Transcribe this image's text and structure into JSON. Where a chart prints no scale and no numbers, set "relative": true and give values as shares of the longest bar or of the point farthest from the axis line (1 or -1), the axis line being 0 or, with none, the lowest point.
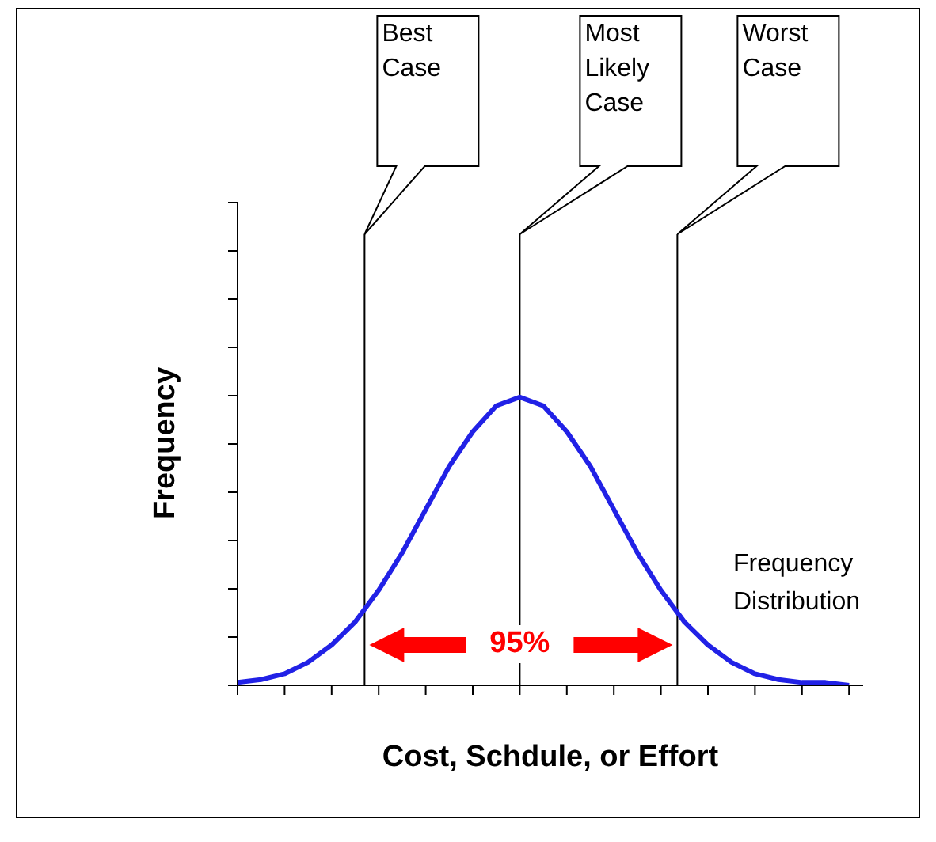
{
  "chart_data": {
    "type": "line",
    "relative": true,
    "xlabel": "Cost, Schdule, or Effort",
    "ylabel": "Frequency",
    "categories": [
      null,
      null,
      null,
      null,
      null,
      null,
      null,
      null,
      null,
      null,
      null,
      null,
      null,
      null,
      null,
      null,
      null,
      null,
      null,
      null,
      null,
      null,
      null,
      null,
      null,
      null,
      null
    ],
    "series": [
      {
        "color": "#2121e6",
        "values": [
          0.01,
          0.02,
          0.04,
          0.08,
          0.14,
          0.22,
          0.33,
          0.46,
          0.61,
          0.76,
          0.88,
          0.97,
          1,
          0.97,
          0.88,
          0.76,
          0.61,
          0.46,
          0.33,
          0.22,
          0.14,
          0.08,
          0.04,
          0.02,
          0.01,
          0.01,
          0
        ]
      }
    ],
    "annotations": [
      "Best Case",
      "Most Likely Case",
      "Worst Case",
      "95%",
      "Frequency Distribution"
    ],
    "marker": "none",
    "line_style": "solid",
    "grid": false
  }
}
